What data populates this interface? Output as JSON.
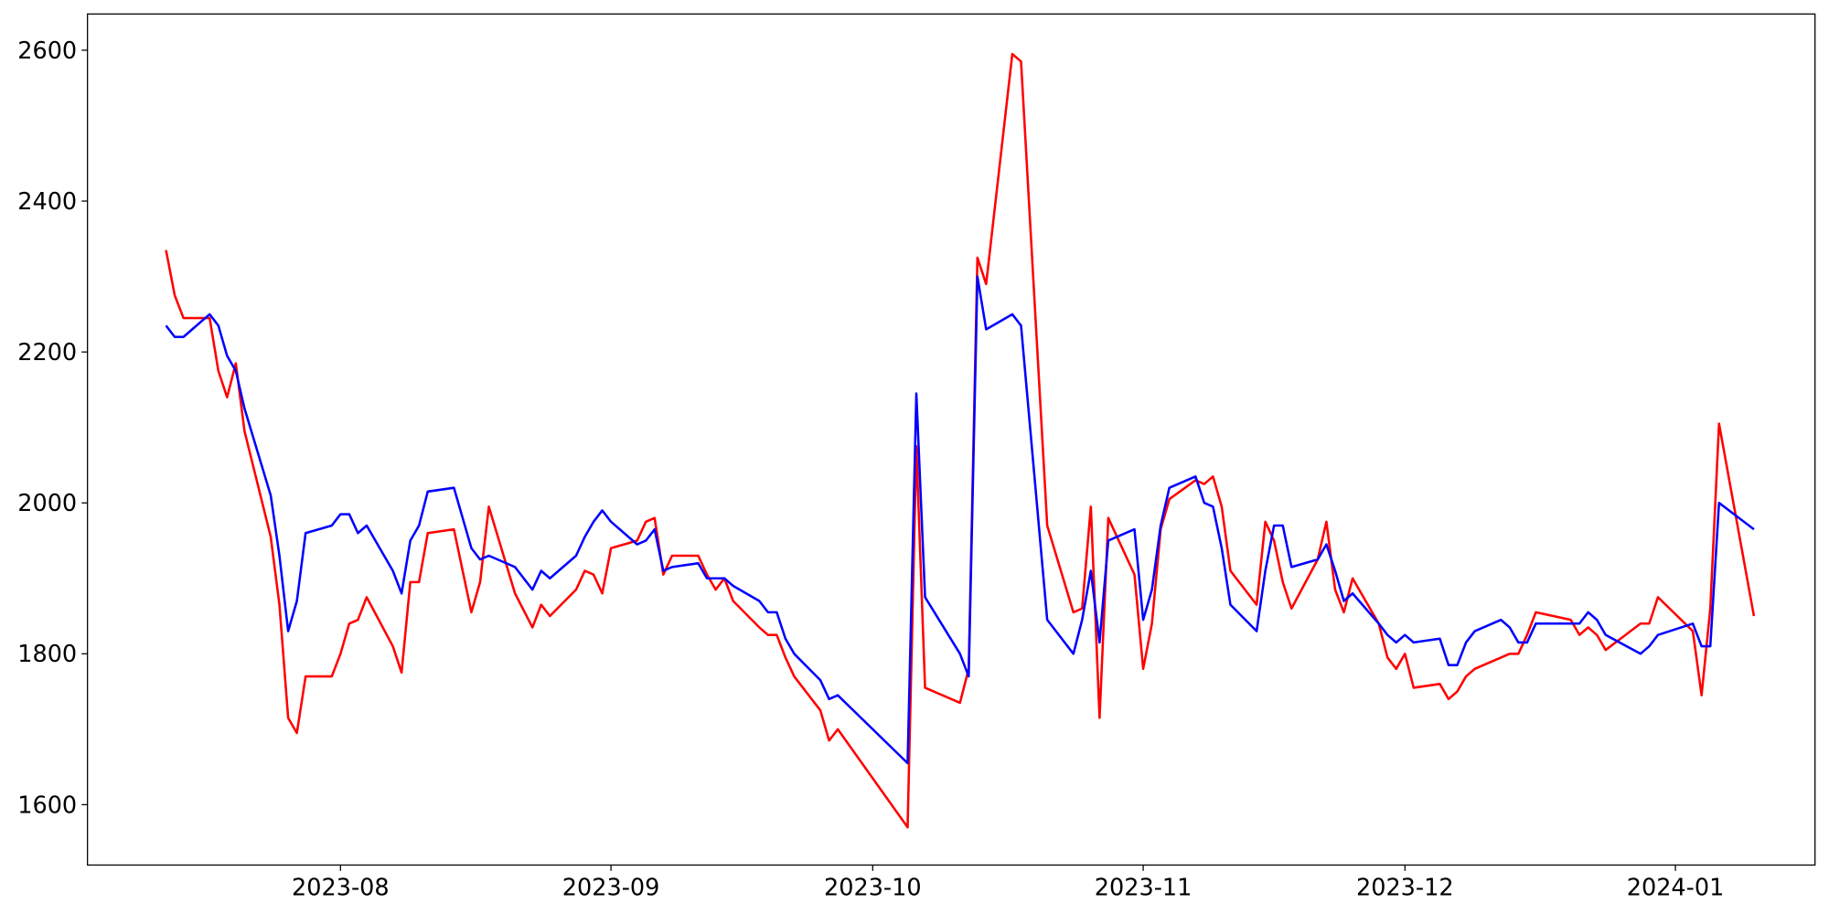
{
  "chart_data": {
    "type": "line",
    "x": [
      "2023-07-12",
      "2023-07-13",
      "2023-07-14",
      "2023-07-17",
      "2023-07-18",
      "2023-07-19",
      "2023-07-20",
      "2023-07-21",
      "2023-07-24",
      "2023-07-25",
      "2023-07-26",
      "2023-07-27",
      "2023-07-28",
      "2023-07-31",
      "2023-08-01",
      "2023-08-02",
      "2023-08-03",
      "2023-08-04",
      "2023-08-07",
      "2023-08-08",
      "2023-08-09",
      "2023-08-10",
      "2023-08-11",
      "2023-08-14",
      "2023-08-16",
      "2023-08-17",
      "2023-08-18",
      "2023-08-21",
      "2023-08-23",
      "2023-08-24",
      "2023-08-25",
      "2023-08-28",
      "2023-08-29",
      "2023-08-30",
      "2023-08-31",
      "2023-09-01",
      "2023-09-04",
      "2023-09-05",
      "2023-09-06",
      "2023-09-07",
      "2023-09-08",
      "2023-09-11",
      "2023-09-12",
      "2023-09-13",
      "2023-09-14",
      "2023-09-15",
      "2023-09-18",
      "2023-09-19",
      "2023-09-20",
      "2023-09-21",
      "2023-09-22",
      "2023-09-25",
      "2023-09-26",
      "2023-09-27",
      "2023-10-05",
      "2023-10-06",
      "2023-10-07",
      "2023-10-11",
      "2023-10-12",
      "2023-10-13",
      "2023-10-14",
      "2023-10-17",
      "2023-10-18",
      "2023-10-21",
      "2023-10-24",
      "2023-10-25",
      "2023-10-26",
      "2023-10-27",
      "2023-10-28",
      "2023-10-31",
      "2023-11-01",
      "2023-11-02",
      "2023-11-03",
      "2023-11-04",
      "2023-11-07",
      "2023-11-08",
      "2023-11-09",
      "2023-11-10",
      "2023-11-11",
      "2023-11-14",
      "2023-11-15",
      "2023-11-16",
      "2023-11-17",
      "2023-11-18",
      "2023-11-21",
      "2023-11-22",
      "2023-11-23",
      "2023-11-24",
      "2023-11-25",
      "2023-11-28",
      "2023-11-29",
      "2023-11-30",
      "2023-12-01",
      "2023-12-02",
      "2023-12-05",
      "2023-12-06",
      "2023-12-07",
      "2023-12-08",
      "2023-12-09",
      "2023-12-12",
      "2023-12-13",
      "2023-12-14",
      "2023-12-15",
      "2023-12-16",
      "2023-12-20",
      "2023-12-21",
      "2023-12-22",
      "2023-12-23",
      "2023-12-24",
      "2023-12-28",
      "2023-12-29",
      "2023-12-30",
      "2024-01-03",
      "2024-01-04",
      "2024-01-05",
      "2024-01-06",
      "2024-01-10"
    ],
    "series": [
      {
        "color": "red",
        "values": [
          2335,
          2275,
          2245,
          2245,
          2175,
          2140,
          2185,
          2095,
          1955,
          1865,
          1715,
          1695,
          1770,
          1770,
          1800,
          1840,
          1845,
          1875,
          1810,
          1775,
          1895,
          1895,
          1960,
          1965,
          1855,
          1895,
          1995,
          1880,
          1835,
          1865,
          1850,
          1885,
          1910,
          1905,
          1880,
          1940,
          1950,
          1975,
          1980,
          1905,
          1930,
          1930,
          1905,
          1885,
          1900,
          1870,
          1835,
          1825,
          1825,
          1795,
          1770,
          1725,
          1685,
          1700,
          1570,
          2075,
          1755,
          1735,
          1780,
          2325,
          2290,
          2595,
          2585,
          1970,
          1855,
          1860,
          1995,
          1715,
          1980,
          1905,
          1780,
          1840,
          1965,
          2005,
          2030,
          2025,
          2035,
          1995,
          1910,
          1865,
          1975,
          1950,
          1895,
          1860,
          1925,
          1975,
          1885,
          1855,
          1900,
          1840,
          1795,
          1780,
          1800,
          1755,
          1760,
          1740,
          1750,
          1770,
          1780,
          1795,
          1800,
          1800,
          1825,
          1855,
          1845,
          1825,
          1835,
          1825,
          1805,
          1840,
          1840,
          1875,
          1830,
          1745,
          1860,
          2105,
          1850
        ]
      },
      {
        "color": "blue",
        "values": [
          2235,
          2220,
          2220,
          2250,
          2235,
          2195,
          2175,
          2125,
          2010,
          1930,
          1830,
          1870,
          1960,
          1970,
          1985,
          1985,
          1960,
          1970,
          1910,
          1880,
          1950,
          1970,
          2015,
          2020,
          1940,
          1925,
          1930,
          1915,
          1885,
          1910,
          1900,
          1930,
          1955,
          1975,
          1990,
          1975,
          1945,
          1950,
          1965,
          1910,
          1915,
          1920,
          1900,
          1900,
          1900,
          1890,
          1870,
          1855,
          1855,
          1820,
          1800,
          1765,
          1740,
          1745,
          1655,
          2145,
          1875,
          1800,
          1770,
          2300,
          2230,
          2250,
          2235,
          1845,
          1800,
          1845,
          1910,
          1815,
          1950,
          1965,
          1845,
          1885,
          1970,
          2020,
          2035,
          2000,
          1995,
          1940,
          1865,
          1830,
          1910,
          1970,
          1970,
          1915,
          1925,
          1945,
          1910,
          1870,
          1880,
          1840,
          1825,
          1815,
          1825,
          1815,
          1820,
          1785,
          1785,
          1815,
          1830,
          1845,
          1835,
          1815,
          1815,
          1840,
          1840,
          1840,
          1855,
          1845,
          1825,
          1800,
          1810,
          1825,
          1840,
          1810,
          1810,
          2000,
          1965
        ]
      }
    ],
    "xlim": [
      "2023-07-03",
      "2024-01-17"
    ],
    "xticks": [
      "2023-08",
      "2023-09",
      "2023-10",
      "2023-11",
      "2023-12",
      "2024-01"
    ],
    "ylim": [
      1520,
      2648
    ],
    "yticks": [
      1600,
      1800,
      2000,
      2200,
      2400,
      2600
    ]
  }
}
